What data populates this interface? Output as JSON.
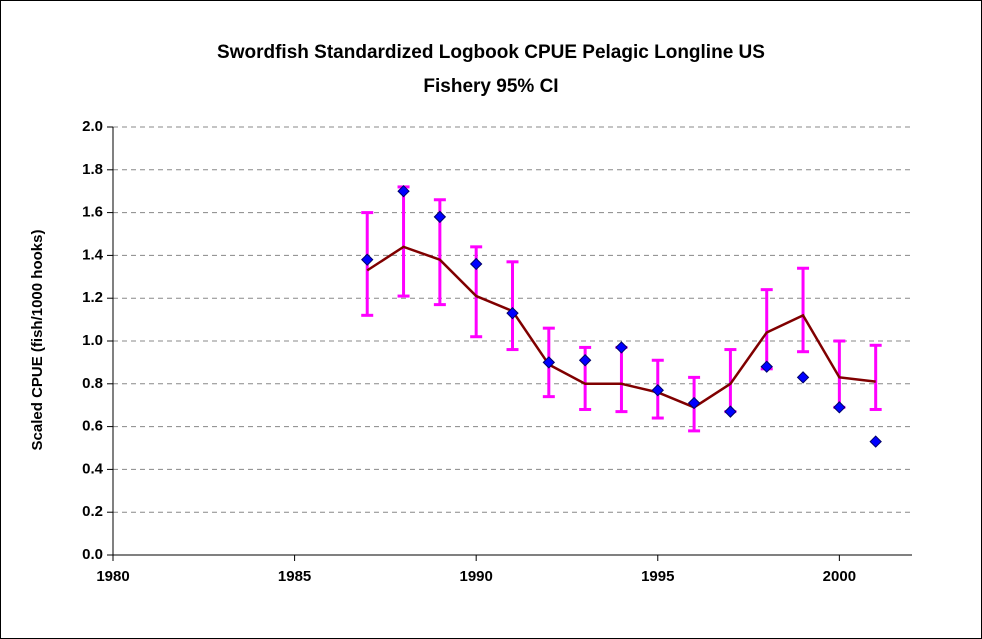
{
  "chart_data": {
    "type": "line",
    "title": "Swordfish Standardized Logbook CPUE Pelagic Longline US Fishery 95% CI",
    "y_label": "Scaled CPUE  (fish/1000 hooks)",
    "x": [
      1987,
      1988,
      1989,
      1990,
      1991,
      1992,
      1993,
      1994,
      1995,
      1996,
      1997,
      1998,
      1999,
      2000,
      2001
    ],
    "series": [
      {
        "style": "markers",
        "color": "#0000ff",
        "values": [
          1.38,
          1.7,
          1.58,
          1.36,
          1.13,
          0.9,
          0.91,
          0.97,
          0.77,
          0.71,
          0.67,
          0.88,
          0.83,
          0.69,
          0.53
        ]
      },
      {
        "style": "line",
        "color": "#800000",
        "error_color": "#ff00ff",
        "values": [
          1.33,
          1.44,
          1.38,
          1.21,
          1.14,
          0.89,
          0.8,
          0.8,
          0.76,
          0.69,
          0.8,
          1.04,
          1.12,
          0.83,
          0.81
        ],
        "lower": [
          1.12,
          1.21,
          1.17,
          1.02,
          0.96,
          0.74,
          0.68,
          0.67,
          0.64,
          0.58,
          0.67,
          0.87,
          0.95,
          0.69,
          0.68
        ],
        "upper": [
          1.6,
          1.72,
          1.66,
          1.44,
          1.37,
          1.06,
          0.97,
          0.97,
          0.91,
          0.83,
          0.96,
          1.24,
          1.34,
          1.0,
          0.98
        ]
      }
    ],
    "xlim": [
      1980,
      2002
    ],
    "xticks": [
      1980,
      1985,
      1990,
      1995,
      2000
    ],
    "ylim": [
      0,
      2
    ],
    "yticks": [
      {
        "value": 0,
        "label": "0.0"
      },
      {
        "value": 0.2,
        "label": "0.2"
      },
      {
        "value": 0.4,
        "label": "0.4"
      },
      {
        "value": 0.6,
        "label": "0.6"
      },
      {
        "value": 0.8,
        "label": "0.8"
      },
      {
        "value": 1.0,
        "label": "1.0"
      },
      {
        "value": 1.2,
        "label": "1.2"
      },
      {
        "value": 1.4,
        "label": "1.4"
      },
      {
        "value": 1.6,
        "label": "1.6"
      },
      {
        "value": 1.8,
        "label": "1.8"
      },
      {
        "value": 2.0,
        "label": "2.0"
      }
    ],
    "grid": true
  }
}
